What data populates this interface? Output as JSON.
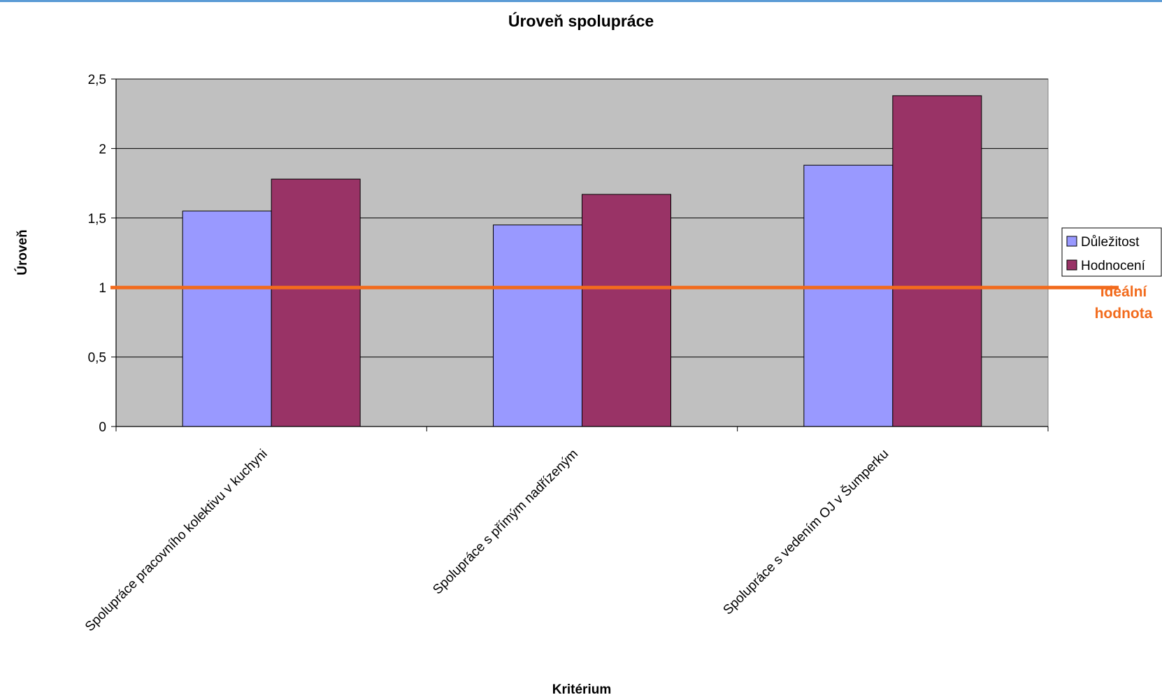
{
  "colors": {
    "top_rule": "#5b9bd5",
    "plot_background": "#c0c0c0",
    "gridline": "#000000",
    "ideal_line": "#f26b1d"
  },
  "chart_data": {
    "type": "bar",
    "title": "Úroveň spolupráce",
    "xlabel": "Kritérium",
    "ylabel": "Úroveň",
    "ylim": [
      0,
      2.5
    ],
    "y_ticks": [
      {
        "value": 0,
        "label": "0"
      },
      {
        "value": 0.5,
        "label": "0,5"
      },
      {
        "value": 1,
        "label": "1"
      },
      {
        "value": 1.5,
        "label": "1,5"
      },
      {
        "value": 2,
        "label": "2"
      },
      {
        "value": 2.5,
        "label": "2,5"
      }
    ],
    "grid": true,
    "legend_position": "right",
    "categories": [
      "Spolupráce pracovního kolektivu v kuchyni",
      "Spolupráce s přímým nadřízeným",
      "Spolupráce s vedením OJ v Šumperku"
    ],
    "series": [
      {
        "name": "Důležitost",
        "color": "#9999ff",
        "values": [
          1.55,
          1.45,
          1.88
        ]
      },
      {
        "name": "Hodnocení",
        "color": "#993366",
        "values": [
          1.78,
          1.67,
          2.38
        ]
      }
    ],
    "reference_line": {
      "value": 1,
      "label_line1": "Ideální",
      "label_line2": "hodnota",
      "color": "#f26b1d"
    }
  }
}
